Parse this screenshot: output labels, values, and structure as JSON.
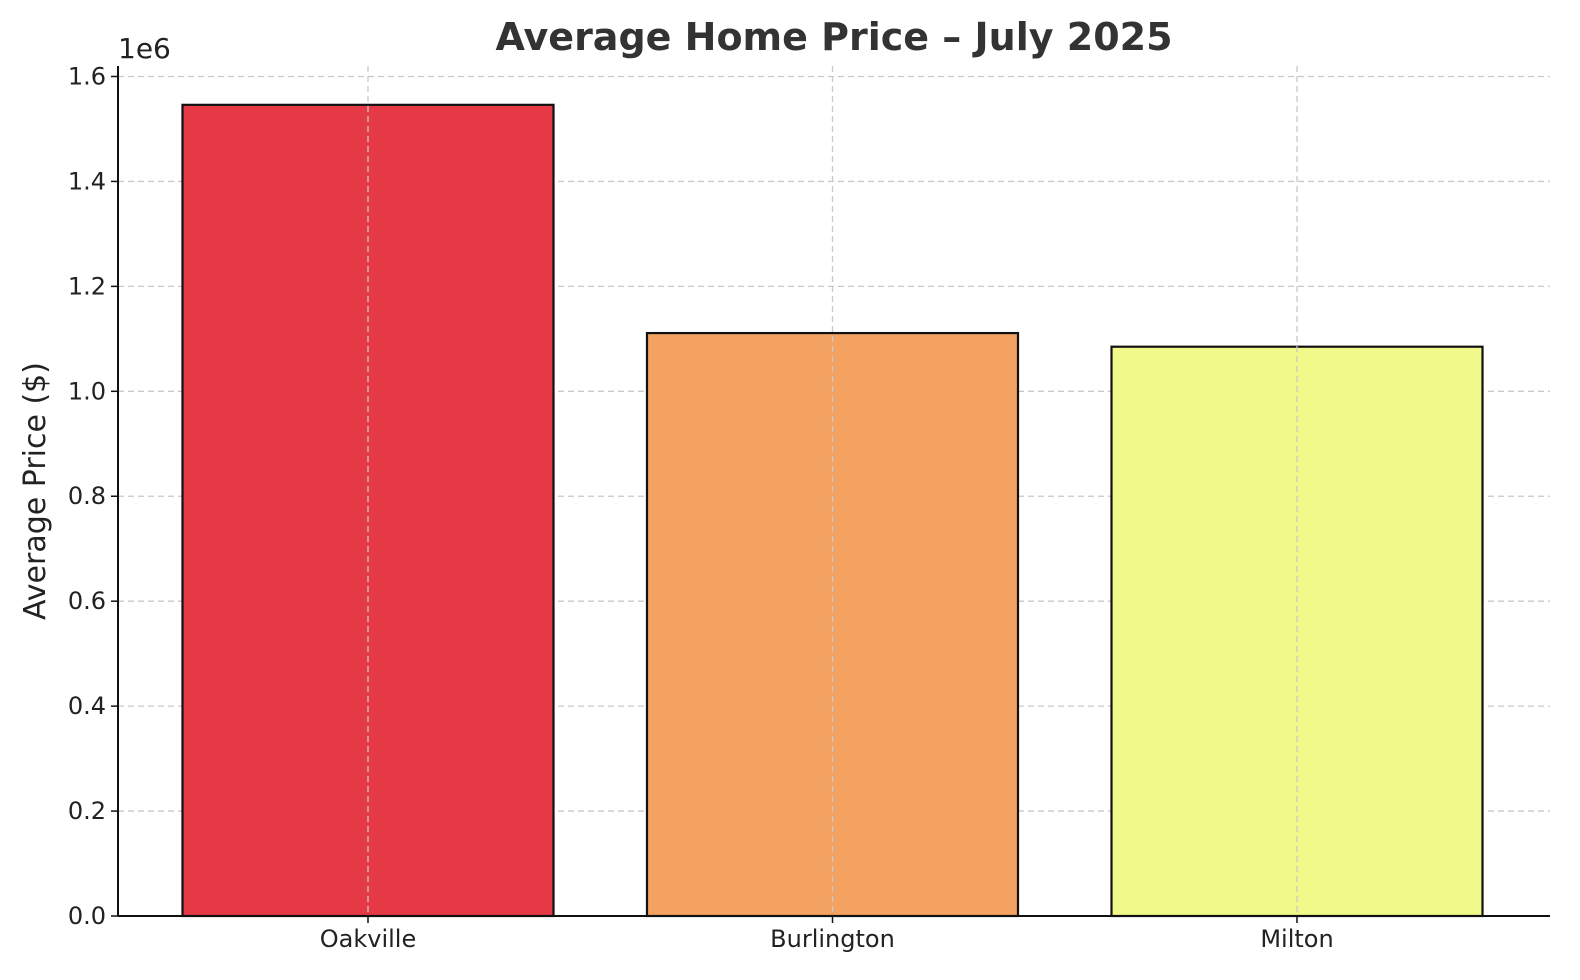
{
  "chart_data": {
    "type": "bar",
    "title": "Average Home Price – July 2025",
    "xlabel": "",
    "ylabel": "Average Price ($)",
    "categories": [
      "Oakville",
      "Burlington",
      "Milton"
    ],
    "values": [
      1546000,
      1111000,
      1085000
    ],
    "colors": [
      "#e63946",
      "#f4a261",
      "#f1f98a"
    ],
    "ylim": [
      0,
      1620000
    ],
    "y_offset_label": "1e6",
    "y_ticks": [
      0,
      200000,
      400000,
      600000,
      800000,
      1000000,
      1200000,
      1400000,
      1600000
    ],
    "y_tick_labels": [
      "0.0",
      "0.2",
      "0.4",
      "0.6",
      "0.8",
      "1.0",
      "1.2",
      "1.4",
      "1.6"
    ],
    "grid": true
  }
}
